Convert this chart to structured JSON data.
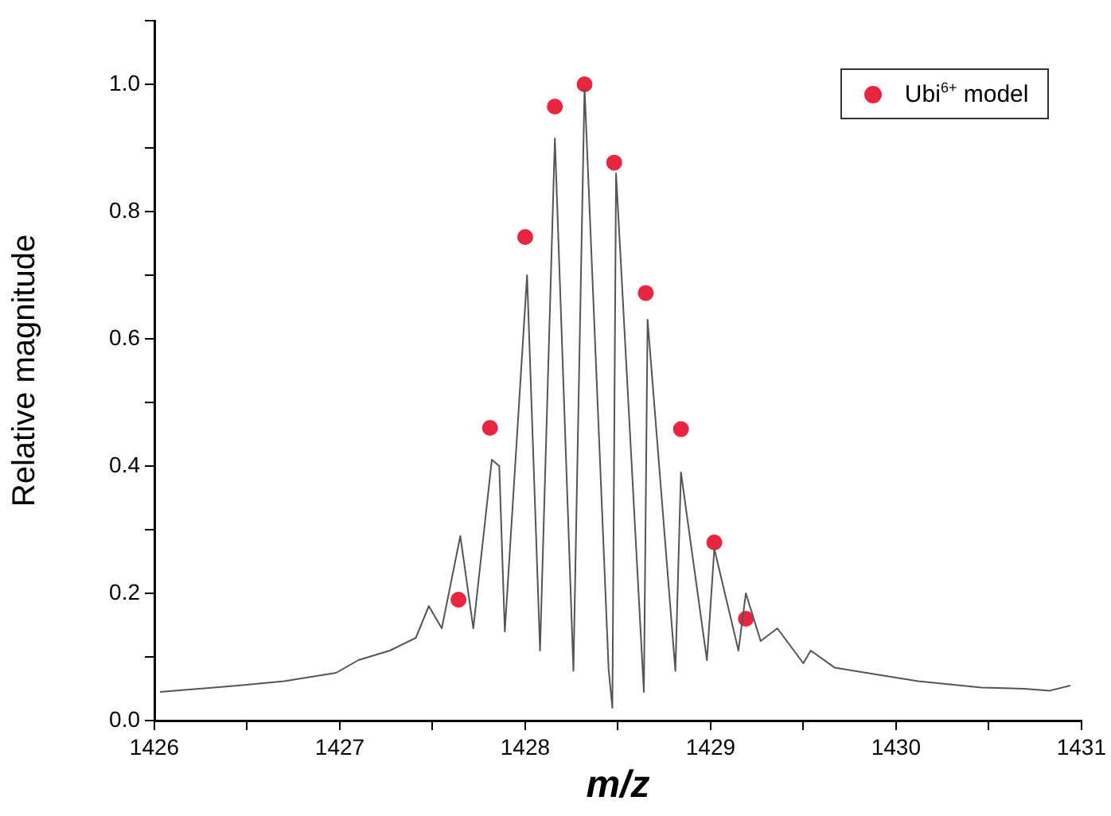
{
  "chart_data": {
    "type": "line",
    "xlabel": "m/z",
    "ylabel": "Relative magnitude",
    "xlim": [
      1426,
      1431
    ],
    "ylim": [
      0,
      1.1
    ],
    "xticks": [
      1426,
      {
        "value": 1426.5,
        "label": null
      },
      1427,
      {
        "value": 1427.5,
        "label": null
      },
      1428,
      {
        "value": 1428.5,
        "label": null
      },
      1429,
      {
        "value": 1429.5,
        "label": null
      },
      1430,
      {
        "value": 1430.5,
        "label": null
      },
      1431
    ],
    "yticks": [
      {
        "value": 0,
        "label": "0.0"
      },
      {
        "value": 0.1,
        "label": null
      },
      {
        "value": 0.2,
        "label": "0.2"
      },
      {
        "value": 0.3,
        "label": null
      },
      {
        "value": 0.4,
        "label": "0.4"
      },
      {
        "value": 0.5,
        "label": null
      },
      {
        "value": 0.6,
        "label": "0.6"
      },
      {
        "value": 0.7,
        "label": null
      },
      {
        "value": 0.8,
        "label": "0.8"
      },
      {
        "value": 0.9,
        "label": null
      },
      {
        "value": 1.0,
        "label": "1.0"
      },
      {
        "value": 1.1,
        "label": null
      }
    ],
    "grid": false,
    "legend": "top right",
    "series": [
      {
        "color": "#555555",
        "marker": "none",
        "x": [
          1426.03,
          1426.45,
          1426.7,
          1426.98,
          1427.1,
          1427.27,
          1427.41,
          1427.48,
          1427.55,
          1427.65,
          1427.72,
          1427.82,
          1427.86,
          1427.89,
          1428.01,
          1428.08,
          1428.16,
          1428.26,
          1428.32,
          1428.45,
          1428.47,
          1428.49,
          1428.64,
          1428.66,
          1428.81,
          1428.84,
          1428.98,
          1429.02,
          1429.15,
          1429.19,
          1429.27,
          1429.36,
          1429.5,
          1429.54,
          1429.67,
          1429.84,
          1430.12,
          1430.46,
          1430.69,
          1430.83,
          1430.94
        ],
        "values": [
          0.045,
          0.055,
          0.062,
          0.075,
          0.095,
          0.11,
          0.13,
          0.18,
          0.145,
          0.29,
          0.145,
          0.41,
          0.4,
          0.14,
          0.7,
          0.11,
          0.915,
          0.078,
          0.995,
          0.08,
          0.02,
          0.86,
          0.045,
          0.63,
          0.078,
          0.39,
          0.095,
          0.27,
          0.11,
          0.2,
          0.125,
          0.145,
          0.09,
          0.11,
          0.083,
          0.075,
          0.062,
          0.052,
          0.05,
          0.047,
          0.055
        ]
      },
      {
        "type": "scatter",
        "name": "Ubi$^{6+}$ model",
        "color": "#e8263f",
        "marker": "circle",
        "x": [
          1427.64,
          1427.81,
          1428.0,
          1428.16,
          1428.32,
          1428.48,
          1428.65,
          1428.84,
          1429.02,
          1429.19
        ],
        "values": [
          0.19,
          0.46,
          0.76,
          0.965,
          1.0,
          0.877,
          0.672,
          0.458,
          0.28,
          0.16
        ]
      }
    ]
  }
}
